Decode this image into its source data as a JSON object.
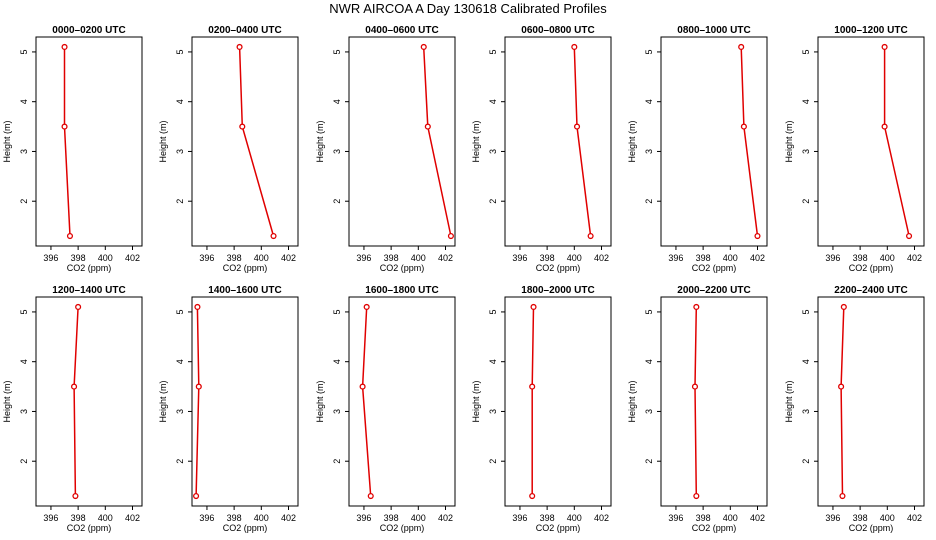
{
  "chart_data": {
    "type": "line",
    "title": "NWR AIRCOA A   Day 130618  Calibrated Profiles",
    "xlabel": "CO2 (ppm)",
    "ylabel": "Height (m)",
    "xlim": [
      394.9,
      402.7
    ],
    "ylim": [
      1.1,
      5.3
    ],
    "xticks": [
      396,
      398,
      400,
      402
    ],
    "yticks": [
      2,
      3,
      4,
      5
    ],
    "series_color": "#e00000",
    "panels": [
      {
        "title": "0000–0200 UTC",
        "heights": [
          5.1,
          3.5,
          1.3
        ],
        "co2": [
          397.0,
          397.0,
          397.4
        ]
      },
      {
        "title": "0200–0400 UTC",
        "heights": [
          5.1,
          3.5,
          1.3
        ],
        "co2": [
          398.4,
          398.6,
          400.9
        ]
      },
      {
        "title": "0400–0600 UTC",
        "heights": [
          5.1,
          3.5,
          1.3
        ],
        "co2": [
          400.4,
          400.7,
          402.4
        ]
      },
      {
        "title": "0600–0800 UTC",
        "heights": [
          5.1,
          3.5,
          1.3
        ],
        "co2": [
          400.0,
          400.2,
          401.2
        ]
      },
      {
        "title": "0800–1000 UTC",
        "heights": [
          5.1,
          3.5,
          1.3
        ],
        "co2": [
          400.8,
          401.0,
          402.0
        ]
      },
      {
        "title": "1000–1200 UTC",
        "heights": [
          5.1,
          3.5,
          1.3
        ],
        "co2": [
          399.8,
          399.8,
          401.6
        ]
      },
      {
        "title": "1200–1400 UTC",
        "heights": [
          5.1,
          3.5,
          1.3
        ],
        "co2": [
          398.0,
          397.7,
          397.8
        ]
      },
      {
        "title": "1400–1600 UTC",
        "heights": [
          5.1,
          3.5,
          1.3
        ],
        "co2": [
          395.3,
          395.4,
          395.2
        ]
      },
      {
        "title": "1600–1800 UTC",
        "heights": [
          5.1,
          3.5,
          1.3
        ],
        "co2": [
          396.2,
          395.9,
          396.5
        ]
      },
      {
        "title": "1800–2000 UTC",
        "heights": [
          5.1,
          3.5,
          1.3
        ],
        "co2": [
          397.0,
          396.9,
          396.9
        ]
      },
      {
        "title": "2000–2200 UTC",
        "heights": [
          5.1,
          3.5,
          1.3
        ],
        "co2": [
          397.5,
          397.4,
          397.5
        ]
      },
      {
        "title": "2200–2400 UTC",
        "heights": [
          5.1,
          3.5,
          1.3
        ],
        "co2": [
          396.8,
          396.6,
          396.7
        ]
      }
    ]
  }
}
